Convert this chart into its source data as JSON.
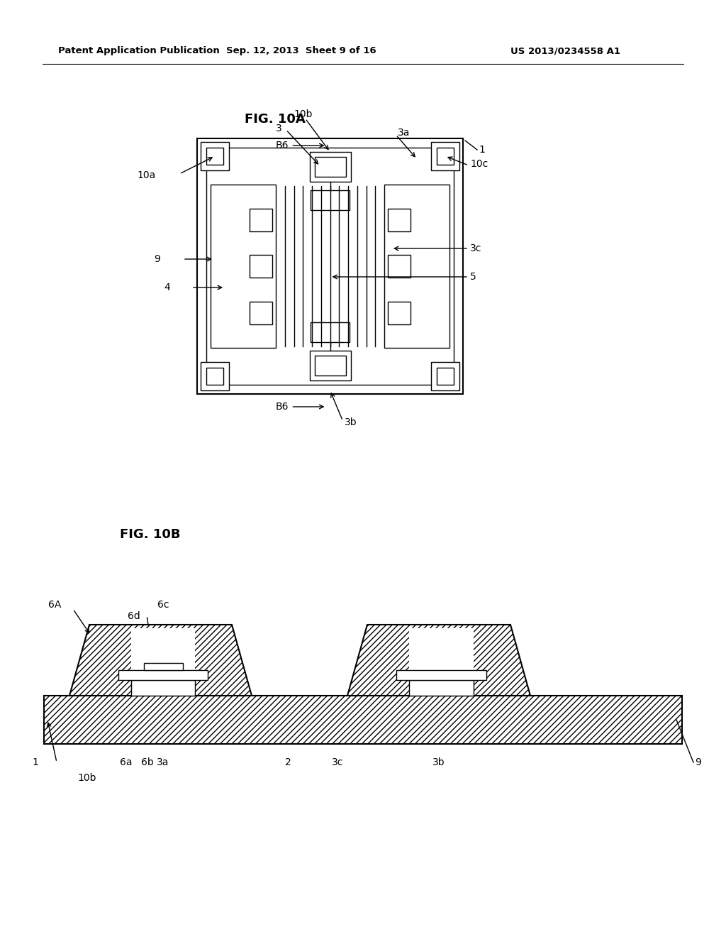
{
  "bg_color": "#ffffff",
  "line_color": "#000000",
  "header_left": "Patent Application Publication",
  "header_mid": "Sep. 12, 2013  Sheet 9 of 16",
  "header_right": "US 2013/0234558 A1",
  "fig10a_title": "FIG. 10A",
  "fig10b_title": "FIG. 10B",
  "lw": 1.5,
  "tlw": 1.0
}
